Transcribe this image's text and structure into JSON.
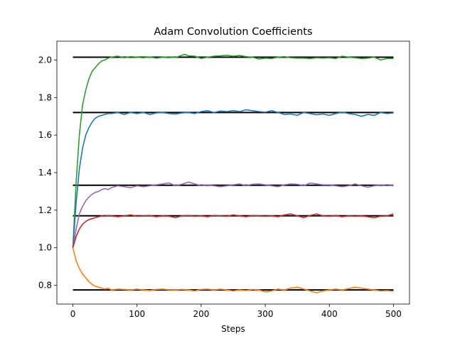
{
  "chart_data": {
    "type": "line",
    "title": "Adam Convolution Coefficients",
    "xlabel": "Steps",
    "ylabel": "",
    "xlim": [
      -25,
      525
    ],
    "ylim": [
      0.7,
      2.1
    ],
    "xticks": [
      0,
      100,
      200,
      300,
      400,
      500
    ],
    "yticks": [
      0.8,
      1.0,
      1.2,
      1.4,
      1.6,
      1.8,
      2.0
    ],
    "xtick_labels": [
      "0",
      "100",
      "200",
      "300",
      "400",
      "500"
    ],
    "ytick_labels": [
      "0.8",
      "1.0",
      "1.2",
      "1.4",
      "1.6",
      "1.8",
      "2.0"
    ],
    "grid": false,
    "legend": "none",
    "reference_lines": {
      "color": "#000000",
      "x_range": [
        0,
        500
      ],
      "values": [
        2.015,
        1.72,
        1.333,
        1.17,
        0.775
      ]
    },
    "series": [
      {
        "color": "#2ca02c",
        "x": [
          0,
          5,
          10,
          15,
          20,
          25,
          30,
          35,
          40,
          45,
          50,
          55,
          60,
          65,
          70,
          80,
          90,
          100,
          110,
          120,
          130,
          140,
          150,
          160,
          170,
          175,
          180,
          190,
          200,
          210,
          220,
          230,
          240,
          250,
          260,
          270,
          280,
          290,
          300,
          310,
          320,
          330,
          340,
          350,
          360,
          370,
          380,
          390,
          400,
          410,
          420,
          430,
          440,
          450,
          460,
          470,
          480,
          490,
          500
        ],
        "y": [
          1.0,
          1.35,
          1.6,
          1.76,
          1.84,
          1.9,
          1.94,
          1.96,
          1.98,
          1.995,
          2.0,
          2.01,
          2.015,
          2.018,
          2.02,
          2.012,
          2.018,
          2.015,
          2.012,
          2.016,
          2.01,
          2.014,
          2.017,
          2.013,
          2.025,
          2.03,
          2.022,
          2.02,
          2.008,
          2.015,
          2.02,
          2.022,
          2.025,
          2.02,
          2.024,
          2.018,
          2.015,
          2.005,
          2.01,
          2.008,
          2.015,
          2.018,
          2.012,
          2.01,
          2.01,
          2.008,
          2.012,
          2.01,
          2.012,
          2.008,
          2.02,
          2.015,
          2.012,
          2.008,
          2.01,
          2.015,
          2.0,
          2.008,
          2.008
        ]
      },
      {
        "color": "#1f77b4",
        "x": [
          0,
          5,
          10,
          15,
          20,
          25,
          30,
          35,
          40,
          45,
          50,
          55,
          60,
          70,
          80,
          90,
          100,
          110,
          120,
          130,
          140,
          150,
          160,
          170,
          180,
          190,
          200,
          210,
          220,
          230,
          240,
          250,
          260,
          270,
          280,
          290,
          300,
          310,
          320,
          330,
          340,
          350,
          360,
          370,
          380,
          390,
          400,
          410,
          420,
          430,
          440,
          450,
          460,
          470,
          480,
          490,
          500
        ],
        "y": [
          1.0,
          1.24,
          1.42,
          1.53,
          1.6,
          1.64,
          1.67,
          1.69,
          1.7,
          1.705,
          1.71,
          1.715,
          1.715,
          1.72,
          1.71,
          1.72,
          1.715,
          1.72,
          1.71,
          1.718,
          1.72,
          1.715,
          1.712,
          1.718,
          1.72,
          1.715,
          1.725,
          1.73,
          1.72,
          1.728,
          1.725,
          1.73,
          1.725,
          1.735,
          1.73,
          1.725,
          1.722,
          1.73,
          1.72,
          1.71,
          1.712,
          1.705,
          1.72,
          1.715,
          1.708,
          1.712,
          1.705,
          1.715,
          1.722,
          1.715,
          1.71,
          1.7,
          1.71,
          1.705,
          1.72,
          1.715,
          1.718
        ]
      },
      {
        "color": "#9467bd",
        "x": [
          0,
          5,
          10,
          15,
          20,
          25,
          30,
          35,
          40,
          45,
          50,
          55,
          60,
          70,
          80,
          90,
          100,
          110,
          120,
          130,
          140,
          150,
          160,
          170,
          180,
          190,
          200,
          210,
          220,
          230,
          240,
          250,
          260,
          270,
          280,
          290,
          300,
          310,
          320,
          330,
          340,
          350,
          360,
          370,
          380,
          390,
          400,
          410,
          420,
          430,
          440,
          450,
          460,
          470,
          480,
          490,
          500
        ],
        "y": [
          1.0,
          1.1,
          1.18,
          1.22,
          1.25,
          1.27,
          1.285,
          1.295,
          1.3,
          1.31,
          1.315,
          1.31,
          1.32,
          1.33,
          1.325,
          1.32,
          1.33,
          1.325,
          1.33,
          1.335,
          1.34,
          1.345,
          1.33,
          1.338,
          1.35,
          1.34,
          1.33,
          1.335,
          1.33,
          1.325,
          1.33,
          1.335,
          1.34,
          1.33,
          1.338,
          1.34,
          1.335,
          1.33,
          1.325,
          1.335,
          1.34,
          1.338,
          1.33,
          1.345,
          1.34,
          1.335,
          1.335,
          1.33,
          1.325,
          1.33,
          1.34,
          1.33,
          1.322,
          1.33,
          1.335,
          1.33,
          1.335
        ]
      },
      {
        "color": "#d62728",
        "x": [
          0,
          5,
          10,
          15,
          20,
          25,
          30,
          35,
          40,
          45,
          50,
          55,
          60,
          70,
          80,
          90,
          100,
          110,
          120,
          130,
          140,
          150,
          160,
          170,
          180,
          190,
          200,
          210,
          220,
          230,
          240,
          250,
          260,
          270,
          280,
          290,
          300,
          310,
          320,
          330,
          340,
          350,
          360,
          370,
          380,
          390,
          400,
          410,
          420,
          430,
          440,
          450,
          460,
          470,
          480,
          490,
          500
        ],
        "y": [
          1.0,
          1.06,
          1.1,
          1.125,
          1.14,
          1.15,
          1.155,
          1.16,
          1.165,
          1.17,
          1.168,
          1.172,
          1.17,
          1.165,
          1.17,
          1.175,
          1.168,
          1.17,
          1.172,
          1.165,
          1.17,
          1.168,
          1.16,
          1.17,
          1.172,
          1.168,
          1.17,
          1.165,
          1.172,
          1.17,
          1.168,
          1.175,
          1.17,
          1.165,
          1.172,
          1.17,
          1.168,
          1.17,
          1.165,
          1.175,
          1.18,
          1.17,
          1.16,
          1.172,
          1.18,
          1.17,
          1.168,
          1.172,
          1.165,
          1.17,
          1.168,
          1.17,
          1.165,
          1.16,
          1.168,
          1.17,
          1.18
        ]
      },
      {
        "color": "#ff7f0e",
        "x": [
          0,
          5,
          10,
          15,
          20,
          25,
          30,
          35,
          40,
          45,
          50,
          55,
          60,
          70,
          80,
          90,
          100,
          110,
          120,
          130,
          140,
          150,
          160,
          170,
          180,
          190,
          200,
          210,
          220,
          230,
          240,
          250,
          260,
          270,
          280,
          290,
          300,
          310,
          320,
          330,
          340,
          350,
          360,
          370,
          380,
          390,
          400,
          410,
          420,
          430,
          440,
          450,
          460,
          470,
          480,
          490,
          500
        ],
        "y": [
          1.0,
          0.93,
          0.89,
          0.86,
          0.84,
          0.82,
          0.805,
          0.795,
          0.79,
          0.785,
          0.78,
          0.785,
          0.775,
          0.78,
          0.778,
          0.775,
          0.78,
          0.775,
          0.772,
          0.778,
          0.78,
          0.776,
          0.775,
          0.778,
          0.775,
          0.77,
          0.778,
          0.78,
          0.775,
          0.78,
          0.775,
          0.77,
          0.775,
          0.772,
          0.778,
          0.775,
          0.765,
          0.77,
          0.78,
          0.775,
          0.785,
          0.79,
          0.78,
          0.77,
          0.76,
          0.77,
          0.775,
          0.78,
          0.775,
          0.782,
          0.79,
          0.785,
          0.78,
          0.775,
          0.77,
          0.772,
          0.768
        ]
      }
    ]
  }
}
